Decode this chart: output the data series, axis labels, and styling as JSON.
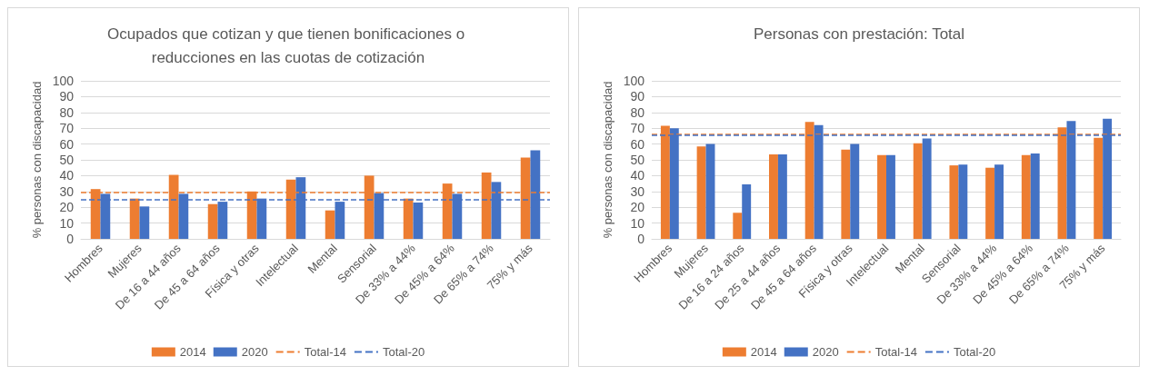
{
  "chart_data": [
    {
      "type": "bar",
      "title": "Ocupados que cotizan y que tienen bonificaciones o reducciones en las cuotas de cotización",
      "ylabel": "% personas con discapacidad",
      "categories": [
        "Hombres",
        "Mujeres",
        "De 16 a 44 años",
        "De 45 a 64 años",
        "Física y otras",
        "Intelectual",
        "Mental",
        "Sensorial",
        "De 33% a 44%",
        "De 45% a 64%",
        "De 65% a 74%",
        "75% y más"
      ],
      "series": [
        {
          "name": "2014",
          "color": "#ed7d31",
          "values": [
            31.5,
            25.5,
            40.5,
            22,
            30,
            37.5,
            18,
            40,
            25.5,
            35,
            42,
            51.5
          ]
        },
        {
          "name": "2020",
          "color": "#4472c4",
          "values": [
            28.5,
            20.5,
            28.5,
            23.5,
            25.5,
            39,
            23.5,
            29,
            23,
            28.5,
            36,
            56
          ]
        }
      ],
      "ref_lines": [
        {
          "axis": "y",
          "value": 29.5,
          "label": "Total-14",
          "color": "#ed7d31",
          "line_style": "dashed"
        },
        {
          "axis": "y",
          "value": 25,
          "label": "Total-20",
          "color": "#4472c4",
          "line_style": "dashed"
        }
      ],
      "ylim": [
        0,
        100
      ],
      "yticks": [
        0,
        10,
        20,
        30,
        40,
        50,
        60,
        70,
        80,
        90,
        100
      ],
      "grid": "y",
      "legend": "bottom"
    },
    {
      "type": "bar",
      "title": "Personas con prestación: Total",
      "ylabel": "% personas con discapacidad",
      "categories": [
        "Hombres",
        "Mujeres",
        "De 16 a 24 años",
        "De 25 a 44 años",
        "De 45 a 64 años",
        "Física y otras",
        "Intelectual",
        "Mental",
        "Sensorial",
        "De 33% a 44%",
        "De 45% a 64%",
        "De 65% a 74%",
        "75% y más"
      ],
      "series": [
        {
          "name": "2014",
          "color": "#ed7d31",
          "values": [
            71.5,
            58.5,
            16.5,
            53.5,
            74,
            56.5,
            53,
            60.5,
            46.5,
            45,
            53,
            70.5,
            64
          ]
        },
        {
          "name": "2020",
          "color": "#4472c4",
          "values": [
            70,
            60,
            34.5,
            53.5,
            72,
            60,
            53,
            63.5,
            47,
            47,
            54,
            74.5,
            76
          ]
        }
      ],
      "ref_lines": [
        {
          "axis": "y",
          "value": 66,
          "label": "Total-14",
          "color": "#ed7d31",
          "line_style": "dashed"
        },
        {
          "axis": "y",
          "value": 65.5,
          "label": "Total-20",
          "color": "#4472c4",
          "line_style": "dashed"
        }
      ],
      "ylim": [
        0,
        100
      ],
      "yticks": [
        0,
        10,
        20,
        30,
        40,
        50,
        60,
        70,
        80,
        90,
        100
      ],
      "grid": "y",
      "legend": "bottom"
    }
  ]
}
